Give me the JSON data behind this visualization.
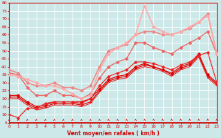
{
  "xlabel": "Vent moyen/en rafales ( km/h )",
  "background_color": "#cce8e8",
  "grid_color": "#ffffff",
  "line_color": "#cc0000",
  "ylim": [
    5,
    80
  ],
  "xlim": [
    0,
    23
  ],
  "yticks": [
    5,
    10,
    15,
    20,
    25,
    30,
    35,
    40,
    45,
    50,
    55,
    60,
    65,
    70,
    75,
    80
  ],
  "xticks": [
    0,
    1,
    2,
    3,
    4,
    5,
    6,
    7,
    8,
    9,
    10,
    11,
    12,
    13,
    14,
    15,
    16,
    17,
    18,
    19,
    20,
    21,
    22,
    23
  ],
  "series": [
    {
      "x": [
        0,
        1,
        2,
        3,
        4,
        5,
        6,
        7,
        8,
        9,
        10,
        11,
        12,
        13,
        14,
        15,
        16,
        17,
        18,
        19,
        20,
        21,
        22,
        23
      ],
      "y": [
        22,
        22,
        18,
        15,
        16,
        18,
        18,
        18,
        18,
        20,
        26,
        32,
        34,
        35,
        40,
        42,
        40,
        38,
        36,
        40,
        42,
        48,
        35,
        30
      ],
      "color": "#dd0000",
      "lw": 0.9,
      "marker": "D",
      "ms": 1.8
    },
    {
      "x": [
        0,
        1,
        2,
        3,
        4,
        5,
        6,
        7,
        8,
        9,
        10,
        11,
        12,
        13,
        14,
        15,
        16,
        17,
        18,
        19,
        20,
        21,
        22,
        23
      ],
      "y": [
        21,
        21,
        17,
        14,
        15,
        17,
        17,
        17,
        16,
        18,
        25,
        31,
        33,
        34,
        39,
        41,
        40,
        38,
        35,
        39,
        41,
        47,
        34,
        29
      ],
      "color": "#dd0000",
      "lw": 0.9,
      "marker": "4",
      "ms": 3.0
    },
    {
      "x": [
        0,
        1,
        2,
        3,
        4,
        5,
        6,
        7,
        8,
        9,
        10,
        11,
        12,
        13,
        14,
        15,
        16,
        17,
        18,
        19,
        20,
        21,
        22,
        23
      ],
      "y": [
        20,
        20,
        16,
        13,
        14,
        16,
        16,
        16,
        15,
        17,
        24,
        30,
        32,
        33,
        38,
        40,
        39,
        37,
        34,
        38,
        40,
        46,
        33,
        28
      ],
      "color": "#ee2222",
      "lw": 0.8,
      "marker": null,
      "ms": 0
    },
    {
      "x": [
        0,
        1,
        2,
        3,
        4,
        5,
        6,
        7,
        8,
        9,
        10,
        11,
        12,
        13,
        14,
        15,
        16,
        17,
        18,
        19,
        20,
        21,
        22,
        23
      ],
      "y": [
        10,
        8,
        14,
        14,
        17,
        18,
        18,
        18,
        17,
        20,
        28,
        34,
        36,
        38,
        43,
        43,
        42,
        40,
        38,
        41,
        43,
        47,
        49,
        30
      ],
      "color": "#ee2222",
      "lw": 0.9,
      "marker": "D",
      "ms": 1.8
    },
    {
      "x": [
        0,
        1,
        2,
        3,
        4,
        5,
        6,
        7,
        8,
        9,
        10,
        11,
        12,
        13,
        14,
        15,
        16,
        17,
        18,
        19,
        20,
        21,
        22,
        23
      ],
      "y": [
        36,
        35,
        27,
        22,
        22,
        25,
        22,
        22,
        20,
        23,
        33,
        40,
        43,
        45,
        55,
        55,
        52,
        50,
        48,
        52,
        55,
        58,
        62,
        48
      ],
      "color": "#ee6666",
      "lw": 1.0,
      "marker": "D",
      "ms": 2.0
    },
    {
      "x": [
        0,
        1,
        2,
        3,
        4,
        5,
        6,
        7,
        8,
        9,
        10,
        11,
        12,
        13,
        14,
        15,
        16,
        17,
        18,
        19,
        20,
        21,
        22,
        23
      ],
      "y": [
        38,
        36,
        30,
        28,
        28,
        30,
        27,
        27,
        25,
        28,
        40,
        50,
        52,
        54,
        60,
        62,
        62,
        60,
        60,
        62,
        64,
        68,
        73,
        48
      ],
      "color": "#ee8888",
      "lw": 1.2,
      "marker": "D",
      "ms": 2.0
    },
    {
      "x": [
        0,
        1,
        2,
        3,
        4,
        5,
        6,
        7,
        8,
        9,
        10,
        11,
        12,
        13,
        14,
        15,
        16,
        17,
        18,
        19,
        20,
        21,
        22,
        23
      ],
      "y": [
        35,
        34,
        32,
        30,
        28,
        28,
        26,
        23,
        20,
        22,
        38,
        48,
        52,
        55,
        60,
        78,
        65,
        62,
        60,
        62,
        65,
        68,
        72,
        48
      ],
      "color": "#ffaaaa",
      "lw": 1.2,
      "marker": "D",
      "ms": 2.0
    }
  ]
}
